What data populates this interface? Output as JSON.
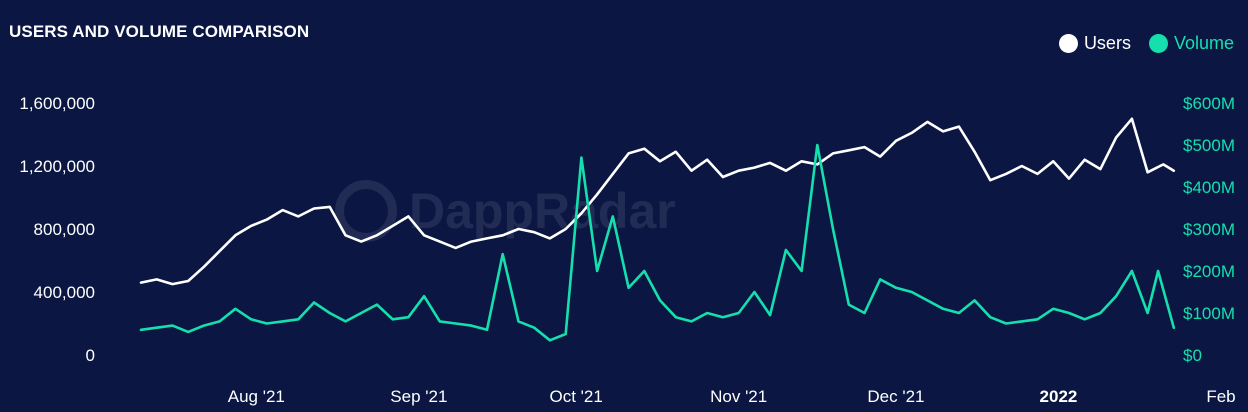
{
  "chart_data": {
    "type": "line",
    "title": "USERS AND VOLUME COMPARISON",
    "watermark": "DappRadar",
    "x_ticks": [
      "Aug '21",
      "Sep '21",
      "Oct '21",
      "Nov '21",
      "Dec '21",
      "2022",
      "Feb"
    ],
    "y_left": {
      "ticks": [
        "1,600,000",
        "1,200,000",
        "800,000",
        "400,000",
        "0"
      ],
      "range": [
        0,
        1600000
      ]
    },
    "y_right": {
      "ticks": [
        "$600M",
        "$500M",
        "$400M",
        "$300M",
        "$200M",
        "$100M",
        "$0"
      ],
      "range": [
        0,
        600
      ],
      "unit": "M USD"
    },
    "x_range": [
      "2021-07-10",
      "2022-02-01"
    ],
    "grid": false,
    "legend_position": "top-right",
    "series": [
      {
        "name": "Users",
        "axis": "left",
        "color": "#ffffff",
        "points": [
          [
            "2021-07-10",
            460000
          ],
          [
            "2021-07-13",
            480000
          ],
          [
            "2021-07-16",
            450000
          ],
          [
            "2021-07-19",
            470000
          ],
          [
            "2021-07-22",
            560000
          ],
          [
            "2021-07-25",
            660000
          ],
          [
            "2021-07-28",
            760000
          ],
          [
            "2021-07-31",
            820000
          ],
          [
            "2021-08-03",
            860000
          ],
          [
            "2021-08-06",
            920000
          ],
          [
            "2021-08-09",
            880000
          ],
          [
            "2021-08-12",
            930000
          ],
          [
            "2021-08-15",
            940000
          ],
          [
            "2021-08-18",
            760000
          ],
          [
            "2021-08-21",
            720000
          ],
          [
            "2021-08-24",
            760000
          ],
          [
            "2021-08-27",
            820000
          ],
          [
            "2021-08-30",
            880000
          ],
          [
            "2021-09-02",
            760000
          ],
          [
            "2021-09-05",
            720000
          ],
          [
            "2021-09-08",
            680000
          ],
          [
            "2021-09-11",
            720000
          ],
          [
            "2021-09-14",
            740000
          ],
          [
            "2021-09-17",
            760000
          ],
          [
            "2021-09-20",
            800000
          ],
          [
            "2021-09-23",
            780000
          ],
          [
            "2021-09-26",
            740000
          ],
          [
            "2021-09-29",
            800000
          ],
          [
            "2021-10-02",
            900000
          ],
          [
            "2021-10-05",
            1020000
          ],
          [
            "2021-10-08",
            1150000
          ],
          [
            "2021-10-11",
            1280000
          ],
          [
            "2021-10-14",
            1310000
          ],
          [
            "2021-10-17",
            1230000
          ],
          [
            "2021-10-20",
            1290000
          ],
          [
            "2021-10-23",
            1170000
          ],
          [
            "2021-10-26",
            1240000
          ],
          [
            "2021-10-29",
            1130000
          ],
          [
            "2021-11-01",
            1170000
          ],
          [
            "2021-11-04",
            1190000
          ],
          [
            "2021-11-07",
            1220000
          ],
          [
            "2021-11-10",
            1170000
          ],
          [
            "2021-11-13",
            1230000
          ],
          [
            "2021-11-16",
            1210000
          ],
          [
            "2021-11-19",
            1280000
          ],
          [
            "2021-11-22",
            1300000
          ],
          [
            "2021-11-25",
            1320000
          ],
          [
            "2021-11-28",
            1260000
          ],
          [
            "2021-12-01",
            1360000
          ],
          [
            "2021-12-04",
            1410000
          ],
          [
            "2021-12-07",
            1480000
          ],
          [
            "2021-12-10",
            1420000
          ],
          [
            "2021-12-13",
            1450000
          ],
          [
            "2021-12-16",
            1290000
          ],
          [
            "2021-12-19",
            1110000
          ],
          [
            "2021-12-22",
            1150000
          ],
          [
            "2021-12-25",
            1200000
          ],
          [
            "2021-12-28",
            1150000
          ],
          [
            "2021-12-31",
            1230000
          ],
          [
            "2022-01-03",
            1120000
          ],
          [
            "2022-01-06",
            1240000
          ],
          [
            "2022-01-09",
            1180000
          ],
          [
            "2022-01-12",
            1380000
          ],
          [
            "2022-01-15",
            1500000
          ],
          [
            "2022-01-18",
            1160000
          ],
          [
            "2022-01-21",
            1210000
          ],
          [
            "2022-01-23",
            1170000
          ]
        ]
      },
      {
        "name": "Volume",
        "axis": "right",
        "color": "#16dfae",
        "points": [
          [
            "2021-07-10",
            60
          ],
          [
            "2021-07-13",
            65
          ],
          [
            "2021-07-16",
            70
          ],
          [
            "2021-07-19",
            55
          ],
          [
            "2021-07-22",
            70
          ],
          [
            "2021-07-25",
            80
          ],
          [
            "2021-07-28",
            110
          ],
          [
            "2021-07-31",
            85
          ],
          [
            "2021-08-03",
            75
          ],
          [
            "2021-08-06",
            80
          ],
          [
            "2021-08-09",
            85
          ],
          [
            "2021-08-12",
            125
          ],
          [
            "2021-08-15",
            100
          ],
          [
            "2021-08-18",
            80
          ],
          [
            "2021-08-21",
            100
          ],
          [
            "2021-08-24",
            120
          ],
          [
            "2021-08-27",
            85
          ],
          [
            "2021-08-30",
            90
          ],
          [
            "2021-09-02",
            140
          ],
          [
            "2021-09-05",
            80
          ],
          [
            "2021-09-08",
            75
          ],
          [
            "2021-09-11",
            70
          ],
          [
            "2021-09-14",
            60
          ],
          [
            "2021-09-17",
            240
          ],
          [
            "2021-09-20",
            80
          ],
          [
            "2021-09-23",
            65
          ],
          [
            "2021-09-26",
            35
          ],
          [
            "2021-09-29",
            50
          ],
          [
            "2021-10-02",
            470
          ],
          [
            "2021-10-05",
            200
          ],
          [
            "2021-10-08",
            330
          ],
          [
            "2021-10-11",
            160
          ],
          [
            "2021-10-14",
            200
          ],
          [
            "2021-10-17",
            130
          ],
          [
            "2021-10-20",
            90
          ],
          [
            "2021-10-23",
            80
          ],
          [
            "2021-10-26",
            100
          ],
          [
            "2021-10-29",
            90
          ],
          [
            "2021-11-01",
            100
          ],
          [
            "2021-11-04",
            150
          ],
          [
            "2021-11-07",
            95
          ],
          [
            "2021-11-10",
            250
          ],
          [
            "2021-11-13",
            200
          ],
          [
            "2021-11-16",
            500
          ],
          [
            "2021-11-19",
            300
          ],
          [
            "2021-11-22",
            120
          ],
          [
            "2021-11-25",
            100
          ],
          [
            "2021-11-28",
            180
          ],
          [
            "2021-12-01",
            160
          ],
          [
            "2021-12-04",
            150
          ],
          [
            "2021-12-07",
            130
          ],
          [
            "2021-12-10",
            110
          ],
          [
            "2021-12-13",
            100
          ],
          [
            "2021-12-16",
            130
          ],
          [
            "2021-12-19",
            90
          ],
          [
            "2021-12-22",
            75
          ],
          [
            "2021-12-25",
            80
          ],
          [
            "2021-12-28",
            85
          ],
          [
            "2021-12-31",
            110
          ],
          [
            "2022-01-03",
            100
          ],
          [
            "2022-01-06",
            85
          ],
          [
            "2022-01-09",
            100
          ],
          [
            "2022-01-12",
            140
          ],
          [
            "2022-01-15",
            200
          ],
          [
            "2022-01-18",
            100
          ],
          [
            "2022-01-20",
            200
          ],
          [
            "2022-01-23",
            65
          ]
        ]
      }
    ]
  }
}
